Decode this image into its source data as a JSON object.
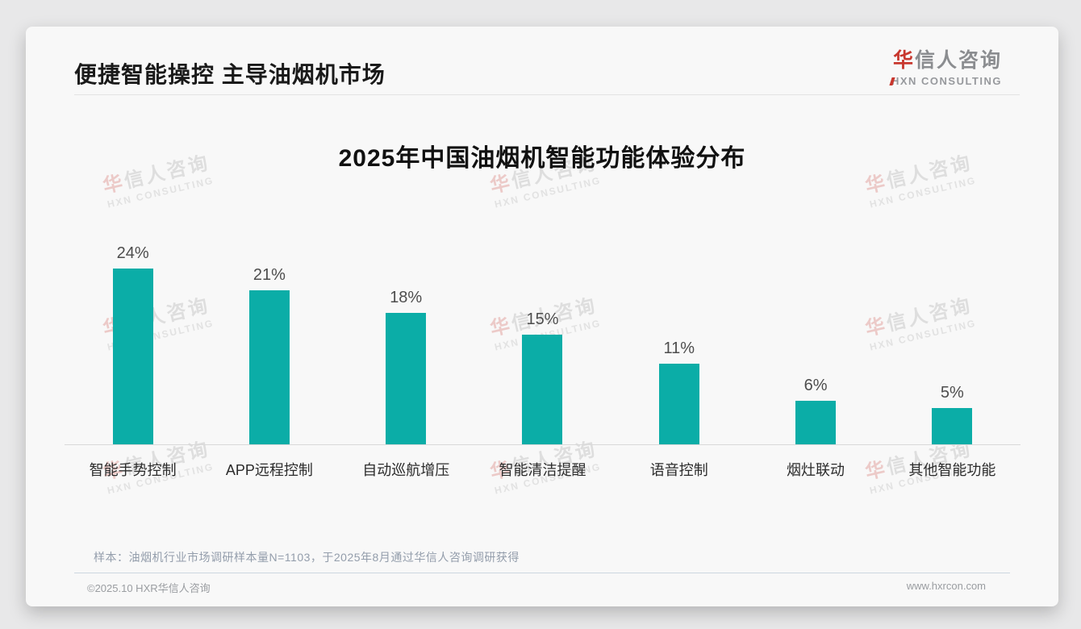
{
  "header": {
    "title": "便捷智能操控 主导油烟机市场"
  },
  "logo": {
    "cn_red": "华",
    "cn_rest": "信人咨询",
    "en": "HXN CONSULTING",
    "red_color": "#c8372e"
  },
  "chart_data": {
    "type": "bar",
    "title": "2025年中国油烟机智能功能体验分布",
    "categories": [
      "智能手势控制",
      "APP远程控制",
      "自动巡航增压",
      "智能清洁提醒",
      "语音控制",
      "烟灶联动",
      "其他智能功能"
    ],
    "values": [
      24,
      21,
      18,
      15,
      11,
      6,
      5
    ],
    "value_suffix": "%",
    "xlabel": "",
    "ylabel": "",
    "ylim": [
      0,
      26
    ],
    "grid": false,
    "legend": false,
    "bar_color": "#0bada7"
  },
  "watermark": {
    "line1_red": "华",
    "line1_rest": "信人咨询",
    "line2": "HXN CONSULTING"
  },
  "footnote": "样本：油烟机行业市场调研样本量N=1103，于2025年8月通过华信人咨询调研获得",
  "footer": {
    "copyright": "©2025.10 HXR华信人咨询",
    "website": "www.hxrcon.com"
  }
}
